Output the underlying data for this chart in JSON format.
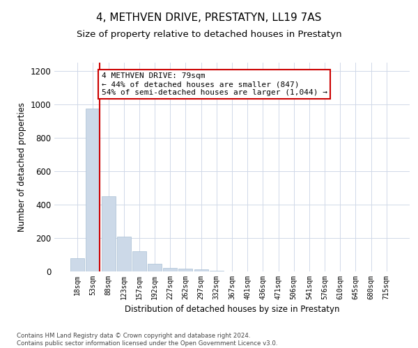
{
  "title": "4, METHVEN DRIVE, PRESTATYN, LL19 7AS",
  "subtitle": "Size of property relative to detached houses in Prestatyn",
  "xlabel": "Distribution of detached houses by size in Prestatyn",
  "ylabel": "Number of detached properties",
  "bar_labels": [
    "18sqm",
    "53sqm",
    "88sqm",
    "123sqm",
    "157sqm",
    "192sqm",
    "227sqm",
    "262sqm",
    "297sqm",
    "332sqm",
    "367sqm",
    "401sqm",
    "436sqm",
    "471sqm",
    "506sqm",
    "541sqm",
    "576sqm",
    "610sqm",
    "645sqm",
    "680sqm",
    "715sqm"
  ],
  "bar_values": [
    80,
    975,
    450,
    210,
    120,
    45,
    20,
    18,
    12,
    5,
    0,
    0,
    0,
    0,
    0,
    0,
    0,
    0,
    0,
    0,
    0
  ],
  "bar_color": "#ccd9e8",
  "bar_edgecolor": "#a8bfd4",
  "vline_color": "#cc0000",
  "annotation_text": "4 METHVEN DRIVE: 79sqm\n← 44% of detached houses are smaller (847)\n54% of semi-detached houses are larger (1,044) →",
  "annotation_box_color": "#ffffff",
  "annotation_box_edgecolor": "#cc0000",
  "ylim": [
    0,
    1250
  ],
  "yticks": [
    0,
    200,
    400,
    600,
    800,
    1000,
    1200
  ],
  "title_fontsize": 11,
  "subtitle_fontsize": 9.5,
  "annotation_fontsize": 8,
  "footer_text": "Contains HM Land Registry data © Crown copyright and database right 2024.\nContains public sector information licensed under the Open Government Licence v3.0.",
  "background_color": "#ffffff",
  "grid_color": "#d0d8e8"
}
